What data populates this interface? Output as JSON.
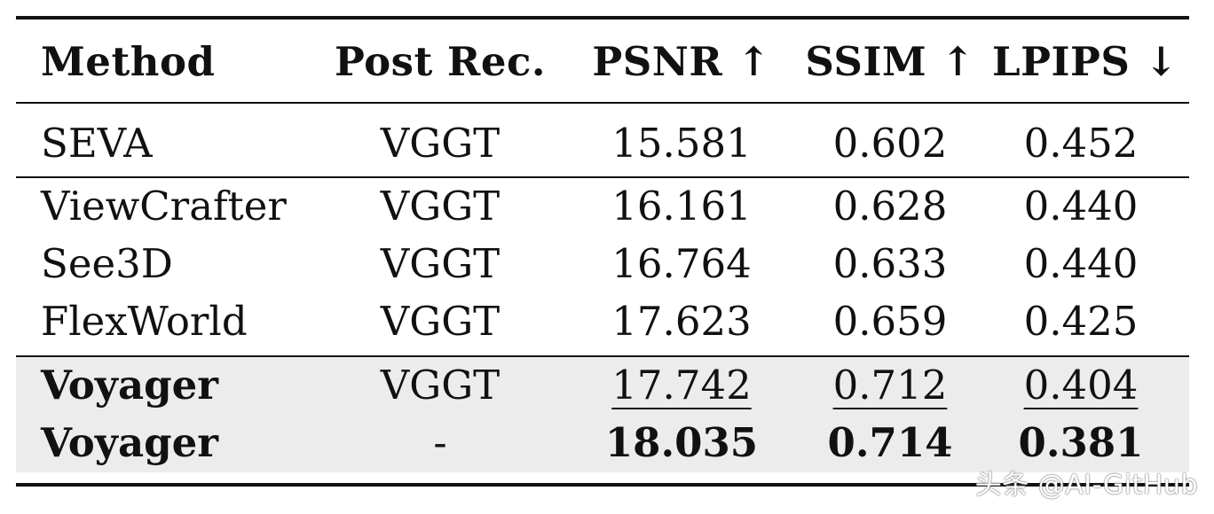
{
  "table": {
    "headers": {
      "method": "Method",
      "post_rec": "Post Rec.",
      "psnr": "PSNR ↑",
      "ssim": "SSIM ↑",
      "lpips": "LPIPS ↓"
    },
    "rows": [
      {
        "method": "SEVA",
        "post_rec": "VGGT",
        "psnr": "15.581",
        "ssim": "0.602",
        "lpips": "0.452"
      },
      {
        "method": "ViewCrafter",
        "post_rec": "VGGT",
        "psnr": "16.161",
        "ssim": "0.628",
        "lpips": "0.440"
      },
      {
        "method": "See3D",
        "post_rec": "VGGT",
        "psnr": "16.764",
        "ssim": "0.633",
        "lpips": "0.440"
      },
      {
        "method": "FlexWorld",
        "post_rec": "VGGT",
        "psnr": "17.623",
        "ssim": "0.659",
        "lpips": "0.425"
      },
      {
        "method": "Voyager",
        "post_rec": "VGGT",
        "psnr": "17.742",
        "ssim": "0.712",
        "lpips": "0.404"
      },
      {
        "method": "Voyager",
        "post_rec": "-",
        "psnr": "18.035",
        "ssim": "0.714",
        "lpips": "0.381"
      }
    ],
    "highlight_background": "#ececec"
  },
  "watermark": "头条 @AI-GitHub"
}
